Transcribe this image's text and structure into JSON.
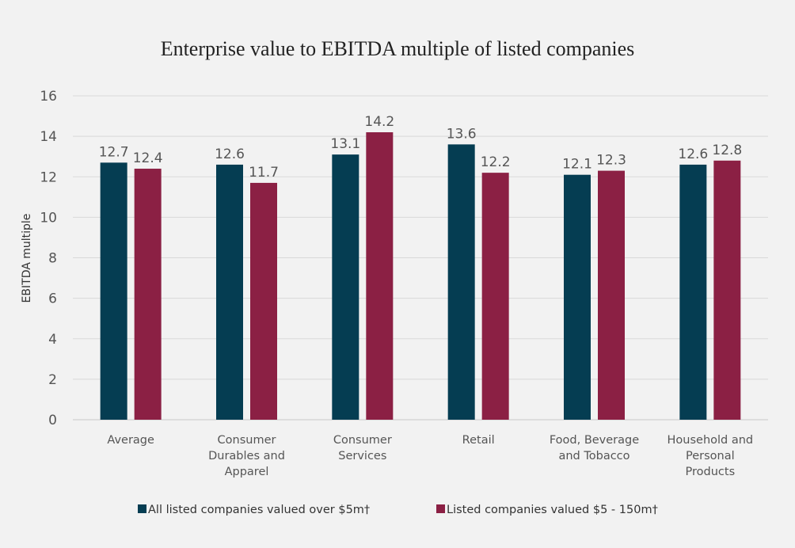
{
  "chart_data": {
    "type": "bar",
    "title": "Enterprise value to EBITDA multiple of listed companies",
    "xlabel": "",
    "ylabel": "EBITDA multiple",
    "ylim": [
      0,
      16
    ],
    "yticks": [
      0,
      2,
      4,
      6,
      8,
      10,
      12,
      14,
      16
    ],
    "grid": true,
    "legend_position": "bottom",
    "categories": [
      [
        "Average"
      ],
      [
        "Consumer",
        "Durables and",
        "Apparel"
      ],
      [
        "Consumer",
        "Services"
      ],
      [
        "Retail"
      ],
      [
        "Food, Beverage",
        "and Tobacco"
      ],
      [
        "Household and",
        "Personal",
        "Products"
      ]
    ],
    "series": [
      {
        "name": "All listed companies valued over $5m†",
        "color": "#053d52",
        "values": [
          12.7,
          12.6,
          13.1,
          13.6,
          12.1,
          12.6
        ]
      },
      {
        "name": "Listed companies valued $5 - 150m†",
        "color": "#8b2044",
        "values": [
          12.4,
          11.7,
          14.2,
          12.2,
          12.3,
          12.8
        ]
      }
    ]
  }
}
